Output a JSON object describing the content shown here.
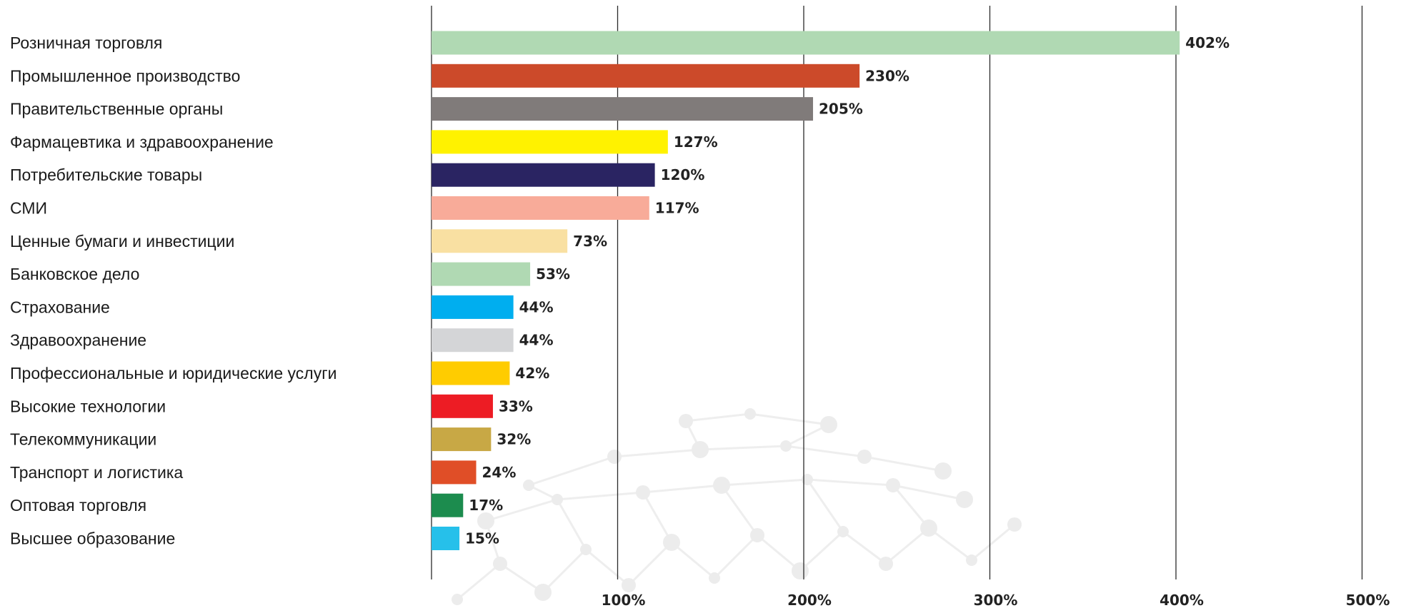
{
  "chart_data": {
    "type": "bar",
    "orientation": "horizontal",
    "title": "",
    "xlabel": "",
    "ylabel": "",
    "xlim": [
      0,
      500
    ],
    "x_ticks": [
      0,
      100,
      200,
      300,
      400,
      500
    ],
    "x_tick_labels": [
      "",
      "100%",
      "200%",
      "300%",
      "400%",
      "500%"
    ],
    "grid": "vertical",
    "legend": "none",
    "categories": [
      "Розничная торговля",
      "Промышленное производство",
      "Правительственные органы",
      "Фармацевтика и здравоохранение",
      "Потребительские товары",
      "СМИ",
      "Ценные бумаги и инвестиции",
      "Банковское дело",
      "Страхование",
      "Здравоохранение",
      "Профессиональные и юридические услуги",
      "Высокие технологии",
      "Телекоммуникации",
      "Транспорт и логистика",
      "Оптовая торговля",
      "Высшее образование"
    ],
    "values": [
      402,
      230,
      205,
      127,
      120,
      117,
      73,
      53,
      44,
      44,
      42,
      33,
      32,
      24,
      17,
      15
    ],
    "value_labels": [
      "402%",
      "230%",
      "205%",
      "127%",
      "120%",
      "117%",
      "73%",
      "53%",
      "44%",
      "44%",
      "42%",
      "33%",
      "32%",
      "24%",
      "17%",
      "15%"
    ],
    "colors": [
      "#b0d9b3",
      "#cc4a2a",
      "#807b7a",
      "#fff200",
      "#2a2462",
      "#f8ab99",
      "#f9e0a2",
      "#b0d9b3",
      "#00aeef",
      "#d4d5d7",
      "#ffcc00",
      "#ed1c24",
      "#c8a845",
      "#e04e27",
      "#1c8c4e",
      "#26c0ea"
    ]
  }
}
